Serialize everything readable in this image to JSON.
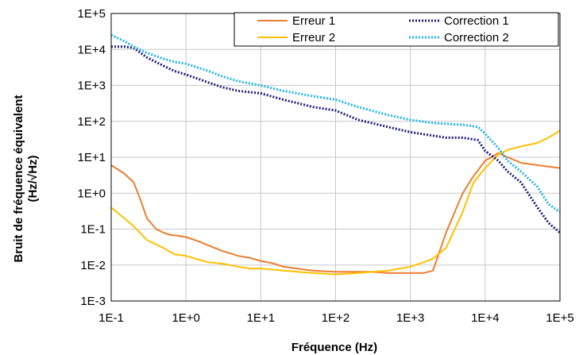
{
  "chart_data": {
    "type": "line",
    "xlabel": "Fréquence (Hz)",
    "ylabel": [
      "Bruit de fréquence équivalent",
      "(Hz/√Hz)"
    ],
    "x_scale": "log",
    "y_scale": "log",
    "xlim": [
      0.1,
      100000
    ],
    "ylim": [
      0.001,
      100000
    ],
    "x_ticks": [
      "1E-1",
      "1E+0",
      "1E+1",
      "1E+2",
      "1E+3",
      "1E+4",
      "1E+5"
    ],
    "y_ticks": [
      "1E+5",
      "1E+4",
      "1E+3",
      "1E+2",
      "1E+1",
      "1E+0",
      "1E-1",
      "1E-2",
      "1E-3"
    ],
    "grid": true,
    "legend_position": "top-right",
    "series": [
      {
        "name": "Erreur 1",
        "color": "#ED7D31",
        "style": "solid",
        "x": [
          0.1,
          0.15,
          0.2,
          0.25,
          0.3,
          0.4,
          0.5,
          0.6,
          0.8,
          1,
          1.5,
          2,
          3,
          5,
          7,
          10,
          15,
          20,
          30,
          50,
          100,
          200,
          300,
          500,
          1000,
          1500,
          2000,
          3000,
          5000,
          7000,
          10000,
          15000,
          20000,
          30000,
          50000,
          70000,
          100000
        ],
        "y": [
          6,
          3.5,
          2,
          0.6,
          0.2,
          0.1,
          0.08,
          0.07,
          0.065,
          0.06,
          0.045,
          0.035,
          0.025,
          0.018,
          0.016,
          0.013,
          0.011,
          0.009,
          0.008,
          0.007,
          0.0065,
          0.0065,
          0.0065,
          0.006,
          0.006,
          0.006,
          0.007,
          0.08,
          1,
          3,
          8,
          13,
          10,
          7,
          6,
          5.5,
          5
        ]
      },
      {
        "name": "Erreur 2",
        "color": "#FFC000",
        "style": "solid",
        "x": [
          0.1,
          0.15,
          0.2,
          0.3,
          0.5,
          0.7,
          1,
          1.5,
          2,
          3,
          5,
          7,
          10,
          20,
          50,
          100,
          200,
          500,
          1000,
          1500,
          2000,
          3000,
          5000,
          7000,
          10000,
          15000,
          20000,
          30000,
          50000,
          70000,
          100000
        ],
        "y": [
          0.4,
          0.2,
          0.12,
          0.05,
          0.03,
          0.02,
          0.018,
          0.014,
          0.012,
          0.011,
          0.009,
          0.008,
          0.008,
          0.007,
          0.006,
          0.0055,
          0.006,
          0.007,
          0.009,
          0.012,
          0.015,
          0.03,
          0.3,
          2,
          5,
          12,
          16,
          20,
          25,
          35,
          55
        ]
      },
      {
        "name": "Correction 1",
        "color": "#1F1F7A",
        "style": "dotted",
        "x": [
          0.1,
          0.15,
          0.2,
          0.3,
          0.5,
          0.7,
          1,
          2,
          3,
          5,
          10,
          20,
          50,
          100,
          200,
          500,
          1000,
          2000,
          3000,
          5000,
          8000,
          10000,
          15000,
          20000,
          30000,
          50000,
          70000,
          100000
        ],
        "y": [
          12000,
          12000,
          11000,
          6000,
          3500,
          2500,
          2000,
          1200,
          900,
          700,
          600,
          400,
          250,
          200,
          110,
          70,
          50,
          40,
          35,
          35,
          30,
          15,
          8,
          4,
          2,
          0.4,
          0.15,
          0.08
        ]
      },
      {
        "name": "Correction 2",
        "color": "#21B4E8",
        "style": "dotted",
        "x": [
          0.1,
          0.15,
          0.2,
          0.3,
          0.5,
          0.7,
          1,
          2,
          3,
          5,
          10,
          20,
          50,
          100,
          200,
          500,
          1000,
          2000,
          3000,
          5000,
          8000,
          10000,
          15000,
          20000,
          30000,
          50000,
          70000,
          100000
        ],
        "y": [
          25000,
          17000,
          12000,
          8000,
          5500,
          4500,
          4000,
          2500,
          1800,
          1300,
          1000,
          700,
          500,
          400,
          250,
          150,
          110,
          90,
          85,
          80,
          70,
          45,
          18,
          8,
          4,
          1.5,
          0.5,
          0.3
        ]
      }
    ]
  }
}
